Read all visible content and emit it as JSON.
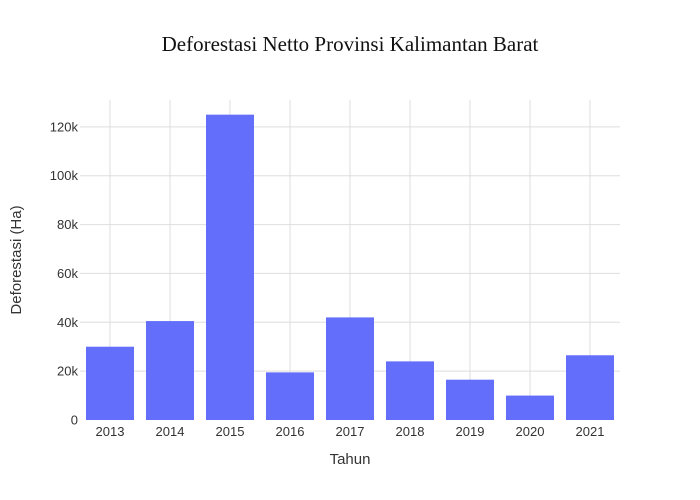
{
  "chart_data": {
    "type": "bar",
    "title": "Deforestasi Netto Provinsi Kalimantan Barat",
    "xlabel": "Tahun",
    "ylabel": "Deforestasi (Ha)",
    "categories": [
      "2013",
      "2014",
      "2015",
      "2016",
      "2017",
      "2018",
      "2019",
      "2020",
      "2021"
    ],
    "values": [
      30000,
      40500,
      125000,
      19500,
      42000,
      24000,
      16500,
      10000,
      26500
    ],
    "ylim": [
      0,
      131000
    ],
    "yticks": [
      0,
      20000,
      40000,
      60000,
      80000,
      100000,
      120000
    ],
    "ytick_labels": [
      "0",
      "20k",
      "40k",
      "60k",
      "80k",
      "100k",
      "120k"
    ],
    "bar_color": "#636efa",
    "grid": true,
    "legend": "none"
  }
}
